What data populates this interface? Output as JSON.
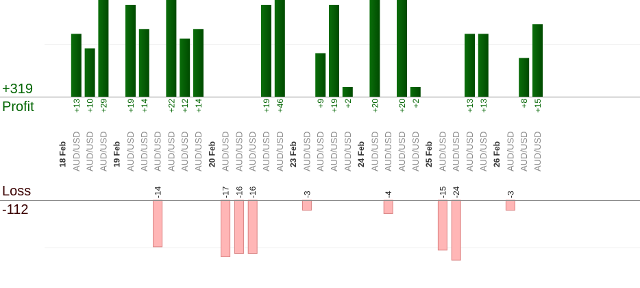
{
  "summary": {
    "profit_total": "+319",
    "profit_label": "Profit",
    "loss_label": "Loss",
    "loss_total": "-112"
  },
  "colors": {
    "profit_bar": "#0a6e0a",
    "profit_bar_dark": "#004a00",
    "loss_bar": "#ffb6b6",
    "loss_bar_border": "#d98080",
    "profit_text": "#006400",
    "loss_text": "#3a0000",
    "axis_line": "#888888",
    "grid_line": "#eeeeee",
    "date_text": "#333333",
    "pair_text": "#888888"
  },
  "chart_data": {
    "type": "bar",
    "profit_ylim": [
      0,
      20
    ],
    "loss_ylim": [
      0,
      18
    ],
    "columns": [
      {
        "date": "18 Feb"
      },
      {
        "pair": "AUD/USD",
        "profit": 13,
        "profit_label": "+13"
      },
      {
        "pair": "AUD/USD",
        "profit": 10,
        "profit_label": "+10"
      },
      {
        "pair": "AUD/USD",
        "profit": 29,
        "profit_label": "+29"
      },
      {
        "date": "19 Feb"
      },
      {
        "pair": "AUD/USD",
        "profit": 19,
        "profit_label": "+19"
      },
      {
        "pair": "AUD/USD",
        "profit": 14,
        "profit_label": "+14"
      },
      {
        "pair": "AUD/USD",
        "loss": 14,
        "loss_label": "-14"
      },
      {
        "pair": "AUD/USD",
        "profit": 22,
        "profit_label": "+22"
      },
      {
        "pair": "AUD/USD",
        "profit": 12,
        "profit_label": "+12"
      },
      {
        "pair": "AUD/USD",
        "profit": 14,
        "profit_label": "+14"
      },
      {
        "date": "20 Feb"
      },
      {
        "pair": "AUD/USD",
        "loss": 17,
        "loss_label": "-17"
      },
      {
        "pair": "AUD/USD",
        "loss": 16,
        "loss_label": "-16"
      },
      {
        "pair": "AUD/USD",
        "loss": 16,
        "loss_label": "-16"
      },
      {
        "pair": "AUD/USD",
        "profit": 19,
        "profit_label": "+19"
      },
      {
        "pair": "AUD/USD",
        "profit": 46,
        "profit_label": "+46"
      },
      {
        "date": "23 Feb"
      },
      {
        "pair": "AUD/USD",
        "loss": 3,
        "loss_label": "-3"
      },
      {
        "pair": "AUD/USD",
        "profit": 9,
        "profit_label": "+9"
      },
      {
        "pair": "AUD/USD",
        "profit": 19,
        "profit_label": "+19"
      },
      {
        "pair": "AUD/USD",
        "profit": 2,
        "profit_label": "+2"
      },
      {
        "date": "24 Feb"
      },
      {
        "pair": "AUD/USD",
        "profit": 20,
        "profit_label": "+20"
      },
      {
        "pair": "AUD/USD",
        "loss": 4,
        "loss_label": "-4"
      },
      {
        "pair": "AUD/USD",
        "profit": 20,
        "profit_label": "+20"
      },
      {
        "pair": "AUD/USD",
        "profit": 2,
        "profit_label": "+2"
      },
      {
        "date": "25 Feb"
      },
      {
        "pair": "AUD/USD",
        "loss": 15,
        "loss_label": "-15"
      },
      {
        "pair": "AUD/USD",
        "loss": 24,
        "loss_label": "-24"
      },
      {
        "pair": "AUD/USD",
        "profit": 13,
        "profit_label": "+13"
      },
      {
        "pair": "AUD/USD",
        "profit": 13,
        "profit_label": "+13"
      },
      {
        "date": "26 Feb"
      },
      {
        "pair": "AUD/USD",
        "loss": 3,
        "loss_label": "-3"
      },
      {
        "pair": "AUD/USD",
        "profit": 8,
        "profit_label": "+8"
      },
      {
        "pair": "AUD/USD",
        "profit": 15,
        "profit_label": "+15"
      }
    ]
  }
}
